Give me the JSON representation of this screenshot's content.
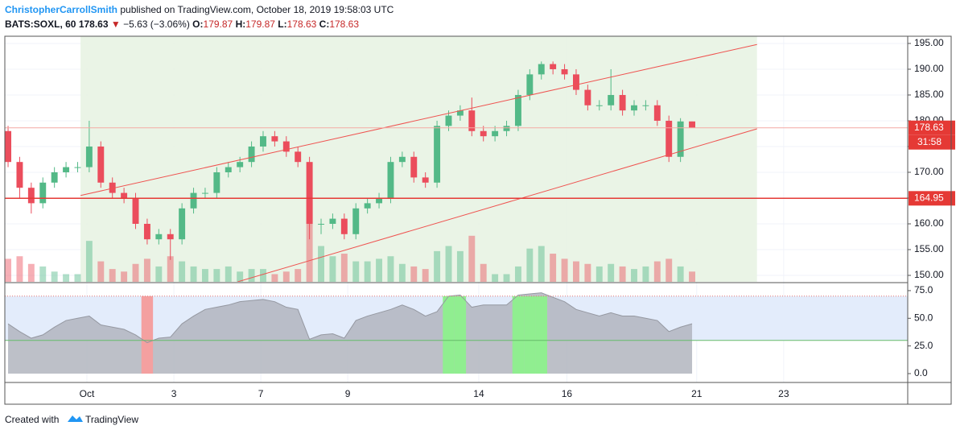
{
  "header": {
    "author": "ChristopherCarrollSmith",
    "published": " published on TradingView.com, October 18, 2019 19:58:03 UTC",
    "symbol": "BATS:SOXL, 60",
    "price": "178.63",
    "arrow": "▼",
    "change": "−5.63 (−3.06%)",
    "o_label": "O:",
    "o": "179.87",
    "h_label": "H:",
    "h": "179.87",
    "l_label": "L:",
    "l": "178.63",
    "c_label": "C:",
    "c": "178.63"
  },
  "footer": {
    "created": "Created with",
    "brand": "TradingView"
  },
  "chart_data": [
    {
      "type": "candlestick",
      "up_color": "#53b987",
      "down_color": "#eb4d5c",
      "grid": true,
      "open": [
        178,
        172,
        167,
        164,
        168,
        170,
        171,
        171,
        175,
        168,
        166,
        165,
        160,
        157,
        158,
        157,
        163,
        166,
        166,
        170,
        171,
        172,
        175,
        177,
        176,
        174,
        172,
        160,
        160,
        161,
        158,
        163,
        164,
        165,
        172,
        173,
        169,
        168,
        179,
        181,
        182,
        178,
        177,
        178,
        179,
        185,
        189,
        191,
        190,
        189,
        186,
        183,
        183,
        185,
        182,
        183,
        183,
        180,
        173,
        179.87
      ],
      "high": [
        179,
        173,
        168,
        169,
        171,
        172,
        172,
        180,
        176,
        169,
        167,
        166,
        161,
        159,
        159,
        164,
        167,
        167,
        171,
        172,
        173,
        176,
        178,
        178,
        177,
        175,
        173,
        161,
        162,
        162,
        164,
        165,
        166,
        173,
        174,
        174,
        170,
        180,
        182,
        183,
        184.5,
        179,
        179,
        180,
        186,
        190,
        191.5,
        191.5,
        191,
        190,
        187,
        184,
        190,
        186,
        184,
        184,
        184,
        181,
        180.5,
        179.87
      ],
      "low": [
        171,
        165,
        162,
        163,
        167,
        169,
        170,
        170,
        167,
        165,
        164,
        159,
        156,
        156,
        153,
        156,
        162,
        165,
        165,
        169,
        170,
        171,
        174,
        175,
        173,
        171,
        157,
        158,
        159,
        157,
        157,
        162,
        163,
        164,
        171,
        168,
        167,
        167,
        178,
        180,
        177,
        176,
        176,
        177,
        178,
        184,
        188,
        189,
        188,
        185,
        182,
        182,
        182,
        181,
        181,
        182,
        179,
        172,
        172,
        178.63
      ],
      "close": [
        172,
        167,
        164,
        168,
        170,
        171,
        171,
        175,
        168,
        166,
        165,
        160,
        157,
        158,
        157,
        163,
        166,
        166,
        170,
        171,
        172,
        175,
        177,
        176,
        174,
        172,
        160,
        160,
        161,
        158,
        163,
        164,
        165,
        172,
        173,
        169,
        168,
        179,
        181,
        182,
        178,
        177,
        178,
        179,
        185,
        189,
        191,
        190,
        189,
        186,
        183,
        183,
        185,
        182,
        183,
        183,
        180,
        173,
        179.87,
        178.63
      ],
      "volume": [
        45,
        50,
        35,
        30,
        20,
        15,
        15,
        80,
        40,
        25,
        20,
        35,
        45,
        30,
        50,
        40,
        30,
        25,
        25,
        30,
        20,
        25,
        25,
        15,
        20,
        25,
        160,
        70,
        50,
        55,
        40,
        40,
        45,
        50,
        35,
        30,
        25,
        60,
        70,
        60,
        90,
        35,
        15,
        15,
        30,
        65,
        70,
        55,
        45,
        40,
        35,
        30,
        35,
        30,
        25,
        30,
        40,
        45,
        30,
        20
      ],
      "volume_max": 480,
      "xlim": [
        -0.28,
        77.6
      ],
      "xticks": [
        {
          "value": 6.8,
          "label": "Oct"
        },
        {
          "value": 14.3,
          "label": "3"
        },
        {
          "value": 21.8,
          "label": "7"
        },
        {
          "value": 29.3,
          "label": "9"
        },
        {
          "value": 40.6,
          "label": "14"
        },
        {
          "value": 48.2,
          "label": "16"
        },
        {
          "value": 59.4,
          "label": "21"
        },
        {
          "value": 66.9,
          "label": "23"
        }
      ],
      "ylim": [
        148.75,
        196.4
      ],
      "yticks": [
        {
          "value": 150,
          "label": "150.00"
        },
        {
          "value": 155,
          "label": "155.00"
        },
        {
          "value": 160,
          "label": "160.00"
        },
        {
          "value": 165,
          "label": "165.00"
        },
        {
          "value": 170,
          "label": "170.00"
        },
        {
          "value": 175,
          "label": "175.00"
        },
        {
          "value": 180,
          "label": "180.00"
        },
        {
          "value": 185,
          "label": "185.00"
        },
        {
          "value": 190,
          "label": "190.00"
        },
        {
          "value": 195,
          "label": "195.00"
        }
      ],
      "trendlines": [
        {
          "x": [
            6.25,
            64.6
          ],
          "y": [
            165.5,
            194.8
          ],
          "color": "#ef5350"
        },
        {
          "x": [
            19.8,
            64.6
          ],
          "y": [
            148.75,
            178.44
          ],
          "color": "#ef5350"
        }
      ],
      "hlines": [
        {
          "value": 164.95,
          "label": "164.95",
          "color": "#e53935"
        },
        {
          "value": 178.63,
          "label": "178.63",
          "color": "#f4a9a3"
        }
      ],
      "countdown": "31:58"
    },
    {
      "type": "area",
      "color": "#b2b5be",
      "values": [
        45,
        38,
        32,
        35,
        42,
        48,
        50,
        52,
        44,
        42,
        40,
        35,
        28,
        32,
        33,
        45,
        52,
        58,
        60,
        62,
        65,
        66,
        67,
        65,
        60,
        58,
        31,
        35,
        36,
        32,
        48,
        52,
        55,
        58,
        62,
        58,
        52,
        56,
        70,
        71,
        60,
        62,
        62,
        62,
        71,
        72,
        73,
        69,
        65,
        58,
        55,
        52,
        55,
        52,
        52,
        50,
        48,
        38,
        42,
        45
      ],
      "ylim": [
        -8,
        81.5
      ],
      "yticks": [
        {
          "value": 0,
          "label": "0.0"
        },
        {
          "value": 25,
          "label": "25.0"
        },
        {
          "value": 50,
          "label": "50.0"
        },
        {
          "value": 75,
          "label": "75.0"
        }
      ],
      "levels": [
        30,
        70
      ],
      "band_color": "#e3ecfb",
      "high_color": "#90ee90",
      "low_color": "#f4a0a0"
    }
  ]
}
